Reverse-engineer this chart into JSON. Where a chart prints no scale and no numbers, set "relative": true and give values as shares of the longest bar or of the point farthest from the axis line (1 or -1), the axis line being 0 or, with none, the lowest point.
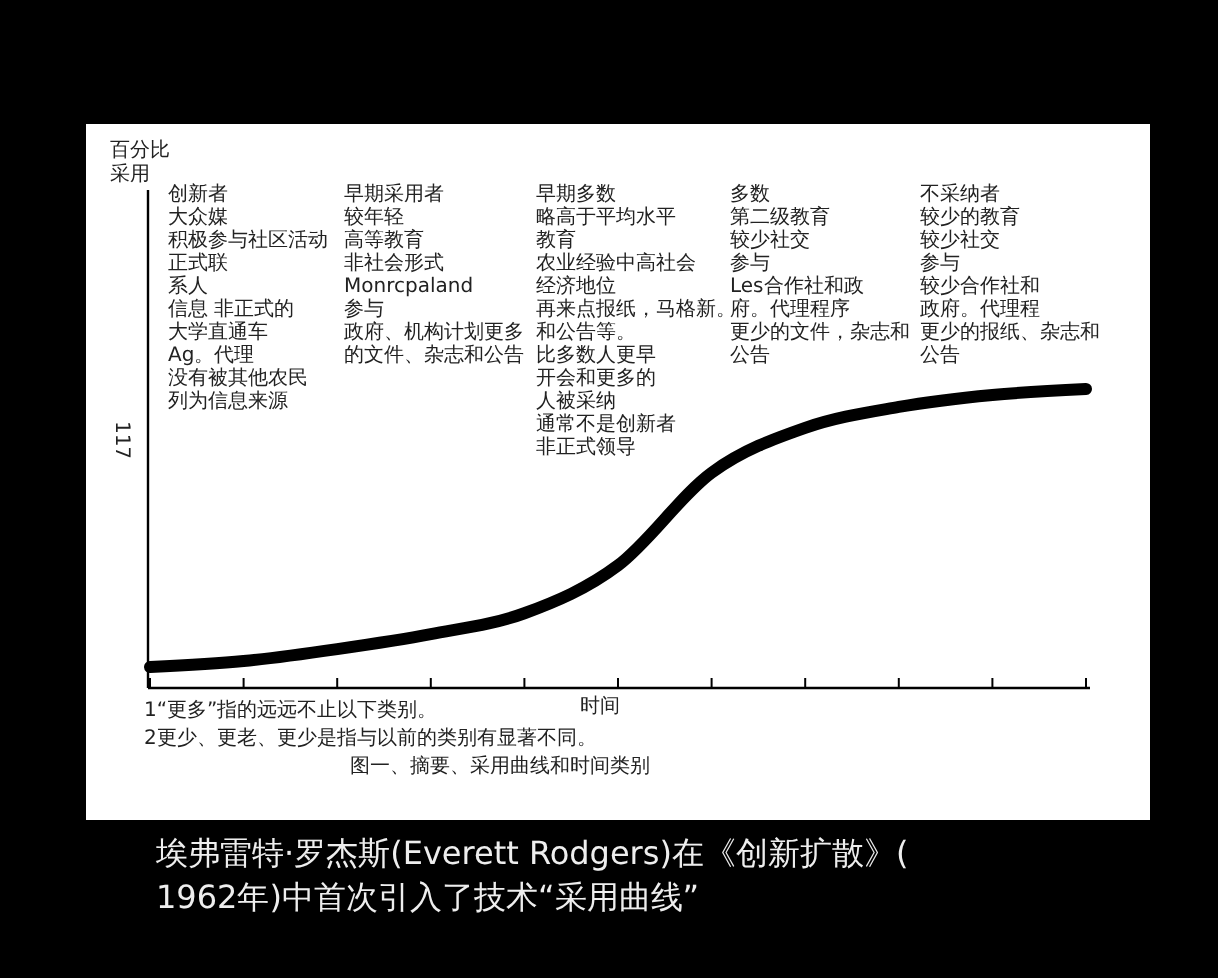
{
  "chart_data": {
    "type": "line",
    "relative": true,
    "title": "图一、摘要、采用曲线和时间类别",
    "xlabel": "时间",
    "categories": [
      null,
      null,
      null,
      null,
      null,
      null,
      null,
      null,
      null,
      null,
      null
    ],
    "series": [
      {
        "color": "#000000",
        "values": [
          0.07,
          0.09,
          0.13,
          0.18,
          0.25,
          0.41,
          0.72,
          0.87,
          0.94,
          0.98,
          1.0
        ]
      }
    ],
    "marker": "none",
    "line_style": "solid",
    "grid": false,
    "annotations": [
      "创新者",
      "大众媒",
      "积极参与社区活动",
      "正式联",
      "系人",
      "信息 非正式的",
      "大学直通车",
      "Ag。代理",
      "没有被其他农民",
      "列为信息来源",
      "早期采用者",
      "较年轻",
      "高等教育",
      "非社会形式",
      "Monrcpaland",
      "参与",
      "政府、机构计划更多",
      "的文件、杂志和公告",
      "早期多数",
      "略高于平均水平",
      "教育",
      "农业经验中高社会",
      "经济地位",
      "再来点报纸，马格新。",
      "和公告等。",
      "比多数人更早",
      "开会和更多的",
      "人被采纳",
      "通常不是创新者",
      "非正式领导",
      "多数",
      "第二级教育",
      "较少社交",
      "参与",
      "Les合作社和政",
      "府。代理程序",
      "更少的文件，杂志和",
      "公告",
      "不采纳者",
      "较少的教育",
      "较少社交",
      "参与",
      "较少合作社和",
      "政府。代理程",
      "更少的报纸、杂志和",
      "公告",
      "百分比采用",
      "117",
      "1“更多”指的远远不止以下类别。",
      "2更少、更老、更少是指与以前的类别有显著不同。",
      "埃弗雷特·罗杰斯(Everett Rodgers)在《创新扩散》(1962年)中首次引入了技术“采用曲线”"
    ]
  }
}
